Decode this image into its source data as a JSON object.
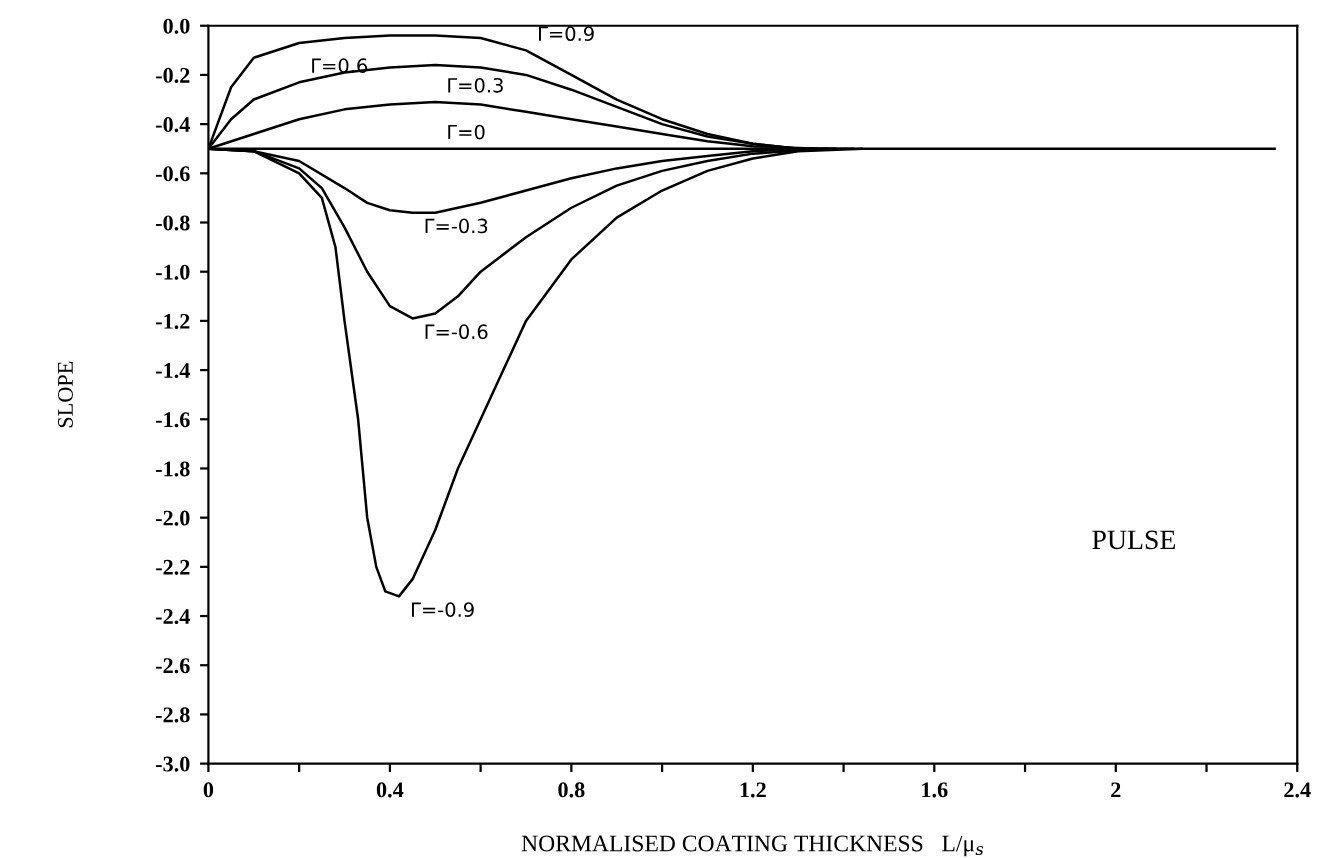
{
  "chart_data": {
    "type": "line",
    "xlabel": "NORMALISED COATING THICKNESS   L/μ$_{s}$",
    "ylabel": "SLOPE",
    "xlim": [
      0,
      2.4
    ],
    "ylim": [
      -3.0,
      0.0
    ],
    "xticks": [
      0,
      {
        "value": 0.2,
        "label": null
      },
      0.4,
      {
        "value": 0.6,
        "label": null
      },
      0.8,
      {
        "value": 1.0,
        "label": null
      },
      1.2,
      {
        "value": 1.4,
        "label": null
      },
      1.6,
      {
        "value": 1.8,
        "label": null
      },
      2,
      {
        "value": 2.2,
        "label": null
      },
      2.4
    ],
    "yticks": [
      {
        "value": 0,
        "label": "0.0"
      },
      {
        "value": -0.2,
        "label": "-0.2"
      },
      {
        "value": -0.4,
        "label": "-0.4"
      },
      {
        "value": -0.6,
        "label": "-0.6"
      },
      {
        "value": -0.8,
        "label": "-0.8"
      },
      {
        "value": -1.0,
        "label": "-1.0"
      },
      {
        "value": -1.2,
        "label": "-1.2"
      },
      {
        "value": -1.4,
        "label": "-1.4"
      },
      {
        "value": -1.6,
        "label": "-1.6"
      },
      {
        "value": -1.8,
        "label": "-1.8"
      },
      {
        "value": -2.0,
        "label": "-2.0"
      },
      {
        "value": -2.2,
        "label": "-2.2"
      },
      {
        "value": -2.4,
        "label": "-2.4"
      },
      {
        "value": -2.6,
        "label": "-2.6"
      },
      {
        "value": -2.8,
        "label": "-2.8"
      },
      {
        "value": -3.0,
        "label": "-3.0"
      }
    ],
    "grid": false,
    "marker": "none",
    "line_style": "solid",
    "series": [
      {
        "name": "Γ=0.9",
        "color": "#000000",
        "x": [
          0,
          0.05,
          0.1,
          0.2,
          0.3,
          0.4,
          0.5,
          0.6,
          0.7,
          0.8,
          0.9,
          1.0,
          1.1,
          1.2,
          1.3,
          1.42
        ],
        "values": [
          -0.5,
          -0.25,
          -0.13,
          -0.07,
          -0.05,
          -0.04,
          -0.04,
          -0.05,
          -0.1,
          -0.2,
          -0.3,
          -0.38,
          -0.44,
          -0.48,
          -0.5,
          -0.5
        ]
      },
      {
        "name": "Γ=0.6",
        "color": "#000000",
        "x": [
          0,
          0.05,
          0.1,
          0.2,
          0.3,
          0.4,
          0.5,
          0.6,
          0.7,
          0.8,
          0.9,
          1.0,
          1.1,
          1.2,
          1.3,
          1.38
        ],
        "values": [
          -0.5,
          -0.38,
          -0.3,
          -0.23,
          -0.19,
          -0.17,
          -0.16,
          -0.17,
          -0.2,
          -0.26,
          -0.33,
          -0.4,
          -0.45,
          -0.48,
          -0.5,
          -0.5
        ]
      },
      {
        "name": "Γ=0.3",
        "color": "#000000",
        "x": [
          0,
          0.1,
          0.2,
          0.3,
          0.4,
          0.5,
          0.6,
          0.7,
          0.8,
          0.9,
          1.0,
          1.1,
          1.2,
          1.34
        ],
        "values": [
          -0.5,
          -0.44,
          -0.38,
          -0.34,
          -0.32,
          -0.31,
          -0.32,
          -0.35,
          -0.38,
          -0.41,
          -0.44,
          -0.47,
          -0.49,
          -0.5
        ]
      },
      {
        "name": "Γ=0",
        "color": "#000000",
        "x": [
          0,
          0.25,
          0.5,
          1.4,
          2.35
        ],
        "values": [
          -0.5,
          -0.5,
          -0.5,
          -0.5,
          -0.5
        ]
      },
      {
        "name": "Γ=-0.3",
        "color": "#000000",
        "x": [
          0,
          0.1,
          0.2,
          0.3,
          0.35,
          0.4,
          0.45,
          0.5,
          0.6,
          0.7,
          0.8,
          0.9,
          1.0,
          1.1,
          1.2,
          1.32
        ],
        "values": [
          -0.5,
          -0.51,
          -0.55,
          -0.66,
          -0.72,
          -0.75,
          -0.76,
          -0.76,
          -0.72,
          -0.67,
          -0.62,
          -0.58,
          -0.55,
          -0.53,
          -0.51,
          -0.5
        ]
      },
      {
        "name": "Γ=-0.6",
        "color": "#000000",
        "x": [
          0,
          0.1,
          0.2,
          0.25,
          0.3,
          0.35,
          0.4,
          0.45,
          0.5,
          0.55,
          0.6,
          0.7,
          0.8,
          0.9,
          1.0,
          1.1,
          1.2,
          1.36
        ],
        "values": [
          -0.5,
          -0.51,
          -0.58,
          -0.66,
          -0.82,
          -1.0,
          -1.14,
          -1.19,
          -1.17,
          -1.1,
          -1.0,
          -0.86,
          -0.74,
          -0.65,
          -0.59,
          -0.55,
          -0.52,
          -0.5
        ]
      },
      {
        "name": "Γ=-0.9",
        "color": "#000000",
        "x": [
          0,
          0.1,
          0.2,
          0.25,
          0.28,
          0.3,
          0.33,
          0.35,
          0.37,
          0.39,
          0.42,
          0.45,
          0.5,
          0.55,
          0.6,
          0.65,
          0.7,
          0.8,
          0.9,
          1.0,
          1.1,
          1.2,
          1.3,
          1.44
        ],
        "values": [
          -0.5,
          -0.51,
          -0.6,
          -0.7,
          -0.9,
          -1.2,
          -1.6,
          -2.0,
          -2.2,
          -2.3,
          -2.32,
          -2.25,
          -2.05,
          -1.8,
          -1.6,
          -1.4,
          -1.2,
          -0.95,
          -0.78,
          -0.67,
          -0.59,
          -0.54,
          -0.51,
          -0.5
        ]
      }
    ],
    "annotations": [
      "PULSE"
    ]
  }
}
